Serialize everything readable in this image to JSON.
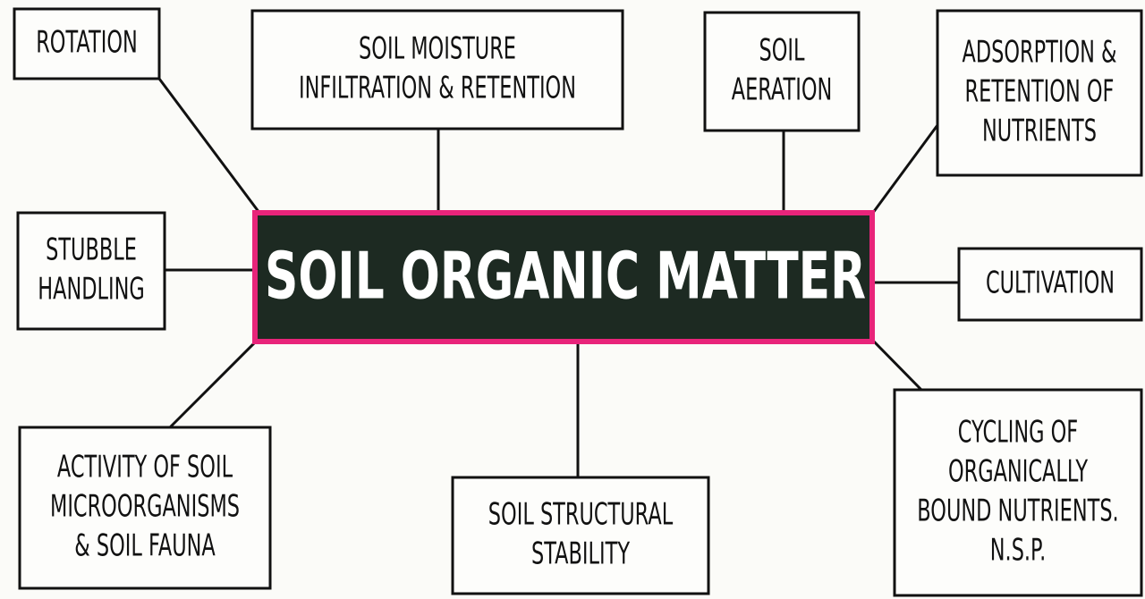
{
  "center": {
    "lines": [
      "SOIL ORGANIC MATTER"
    ]
  },
  "nodes": [
    {
      "lines": [
        "ROTATION"
      ]
    },
    {
      "lines": [
        "SOIL MOISTURE",
        "INFILTRATION & RETENTION"
      ]
    },
    {
      "lines": [
        "SOIL",
        "AERATION"
      ]
    },
    {
      "lines": [
        "ADSORPTION &",
        "RETENTION OF",
        "NUTRIENTS"
      ]
    },
    {
      "lines": [
        "STUBBLE",
        "HANDLING"
      ]
    },
    {
      "lines": [
        "CULTIVATION"
      ]
    },
    {
      "lines": [
        "ACTIVITY OF SOIL",
        "MICROORGANISMS",
        "& SOIL FAUNA"
      ]
    },
    {
      "lines": [
        "SOIL STRUCTURAL",
        "STABILITY"
      ]
    },
    {
      "lines": [
        "CYCLING OF",
        "ORGANICALLY",
        "BOUND NUTRIENTS.",
        "N.S.P."
      ]
    }
  ]
}
